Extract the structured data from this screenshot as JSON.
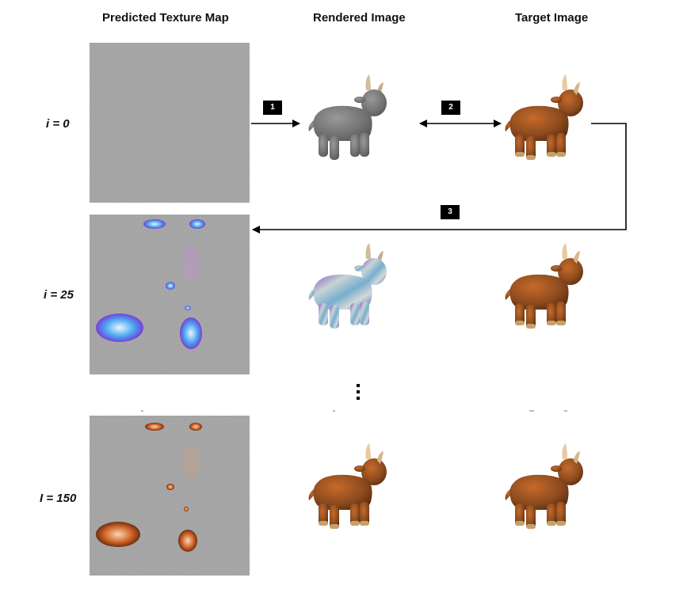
{
  "columns": {
    "texture": "Predicted Texture Map",
    "rendered": "Rendered Image",
    "target": "Target Image"
  },
  "rows": [
    {
      "label": "i = 0"
    },
    {
      "label": "i = 25"
    },
    {
      "label": "I = 150"
    }
  ],
  "steps": {
    "step1": "1",
    "step2": "2",
    "step3": "3"
  },
  "icons": {
    "animal": "toy-yak-render",
    "continuation": "vertical-ellipsis"
  },
  "colors": {
    "texture_noise": "#8a8a8a",
    "untextured_mesh": "#6f6f6f",
    "target_brown": "#8b4a1e",
    "horn": "#e8c9a0",
    "badge_bg": "#000000"
  }
}
